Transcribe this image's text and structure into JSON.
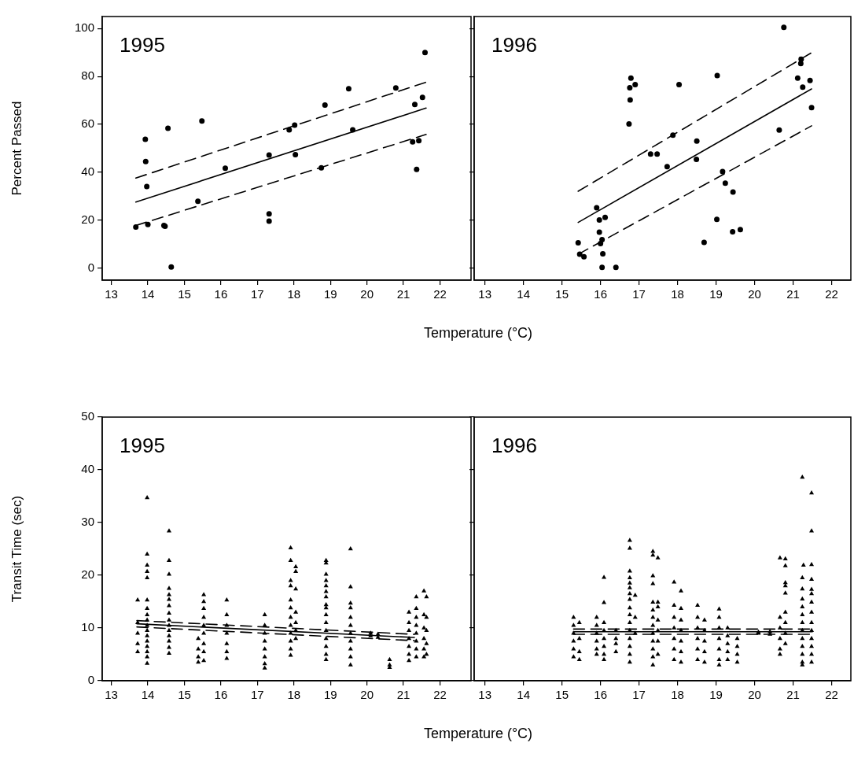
{
  "chart_data": [
    {
      "type": "scatter",
      "title": "1995",
      "xlabel": "Temperature (°C)",
      "ylabel": "Percent Passed",
      "xlim": [
        12.75,
        22.85
      ],
      "xticks": [
        13,
        14,
        15,
        16,
        17,
        18,
        19,
        20,
        21,
        22
      ],
      "ylim": [
        -5,
        105
      ],
      "yticks": [
        0,
        20,
        40,
        60,
        80,
        100
      ],
      "series": [
        {
          "type": "scatter",
          "marker": "circle",
          "color": "#000000",
          "x": [
            13.67,
            13.93,
            13.94,
            13.97,
            14.0,
            14.44,
            14.47,
            14.55,
            14.64,
            15.48,
            15.37,
            16.12,
            17.32,
            17.32,
            17.32,
            17.87,
            18.02,
            18.04,
            18.75,
            18.85,
            19.5,
            19.61,
            20.79,
            21.31,
            21.25,
            21.42,
            21.36,
            21.52,
            21.59
          ],
          "values": [
            17.2,
            53.8,
            44.5,
            34.1,
            18.2,
            17.8,
            17.5,
            58.4,
            0.5,
            61.4,
            27.9,
            41.7,
            22.7,
            19.6,
            47.2,
            57.7,
            59.7,
            47.4,
            41.9,
            68.1,
            74.9,
            57.7,
            75.2,
            68.3,
            52.7,
            53.2,
            41.2,
            71.3,
            90.0
          ]
        },
        {
          "type": "line",
          "marker": "none",
          "line_style": "solid",
          "color": "#000000",
          "x": [
            13.67,
            21.62
          ],
          "values": [
            27.6,
            66.8
          ]
        },
        {
          "type": "line",
          "marker": "none",
          "line_style": "dashed",
          "color": "#000000",
          "x": [
            13.67,
            21.62
          ],
          "values": [
            37.6,
            77.6
          ]
        },
        {
          "type": "line",
          "marker": "none",
          "line_style": "dashed",
          "color": "#000000",
          "x": [
            13.67,
            21.62
          ],
          "values": [
            17.8,
            55.8
          ]
        }
      ]
    },
    {
      "type": "scatter",
      "title": "1996",
      "tick_labels": "x",
      "xlim": [
        12.72,
        22.5
      ],
      "xticks": [
        13,
        14,
        15,
        16,
        17,
        18,
        19,
        20,
        21,
        22
      ],
      "ylim": [
        -5,
        105
      ],
      "yticks": [
        0,
        20,
        40,
        60,
        80,
        100
      ],
      "series": [
        {
          "type": "scatter",
          "marker": "circle",
          "color": "#000000",
          "x": [
            20.76,
            19.03,
            16.79,
            16.76,
            16.9,
            16.77,
            16.74,
            18.04,
            17.88,
            18.5,
            17.3,
            17.47,
            17.73,
            18.49,
            19.17,
            19.24,
            19.44,
            19.02,
            19.43,
            19.63,
            18.69,
            20.64,
            21.21,
            21.2,
            21.12,
            21.25,
            21.44,
            21.48,
            15.9,
            15.97,
            16.12,
            15.97,
            16.04,
            16.0,
            16.06,
            16.04,
            16.4,
            15.42,
            15.46,
            15.57
          ],
          "values": [
            100.5,
            80.4,
            79.3,
            75.3,
            76.6,
            70.2,
            60.2,
            76.6,
            55.5,
            53.0,
            47.6,
            47.6,
            42.4,
            45.4,
            40.3,
            35.5,
            31.8,
            20.4,
            15.2,
            16.1,
            10.8,
            57.6,
            87.2,
            85.4,
            79.3,
            75.5,
            78.3,
            67.0,
            25.2,
            20.1,
            21.2,
            15.0,
            11.9,
            10.3,
            6.0,
            0.3,
            0.3,
            10.6,
            5.8,
            4.8
          ]
        },
        {
          "type": "line",
          "marker": "none",
          "line_style": "solid",
          "color": "#000000",
          "x": [
            15.42,
            21.48
          ],
          "values": [
            19.1,
            74.8
          ]
        },
        {
          "type": "line",
          "marker": "none",
          "line_style": "dashed",
          "color": "#000000",
          "x": [
            15.42,
            21.48
          ],
          "values": [
            32.1,
            89.9
          ]
        },
        {
          "type": "line",
          "marker": "none",
          "line_style": "dashed",
          "color": "#000000",
          "x": [
            15.42,
            21.48
          ],
          "values": [
            5.8,
            59.4
          ]
        }
      ]
    },
    {
      "type": "scatter",
      "title": "1995",
      "xlabel": "Temperature (°C)",
      "ylabel": "Transit Time (sec)",
      "xlim": [
        12.75,
        22.85
      ],
      "xticks": [
        13,
        14,
        15,
        16,
        17,
        18,
        19,
        20,
        21,
        22
      ],
      "ylim": [
        0,
        50
      ],
      "yticks": [
        0,
        10,
        20,
        30,
        40,
        50
      ],
      "series": [
        {
          "type": "scatter",
          "marker": "triangle",
          "color": "#000000",
          "x": [
            13.72,
            13.72,
            13.72,
            13.72,
            13.72,
            13.98,
            13.98,
            13.98,
            13.98,
            13.98,
            13.98,
            13.98,
            13.98,
            13.98,
            13.98,
            13.98,
            13.98,
            13.98,
            13.98,
            13.98,
            13.98,
            13.98,
            14.58,
            14.58,
            14.58,
            14.58,
            14.58,
            14.58,
            14.58,
            14.58,
            14.58,
            14.58,
            14.58,
            14.58,
            14.58,
            14.58,
            14.58,
            15.38,
            15.38,
            15.38,
            15.38,
            15.53,
            15.53,
            15.53,
            15.53,
            15.53,
            15.53,
            15.53,
            15.53,
            15.53,
            16.16,
            16.16,
            16.16,
            16.16,
            16.16,
            16.16,
            16.16,
            17.2,
            17.2,
            17.2,
            17.2,
            17.2,
            17.2,
            17.2,
            17.2,
            17.91,
            17.91,
            17.91,
            17.91,
            17.91,
            17.91,
            17.91,
            17.91,
            17.91,
            17.91,
            17.91,
            17.91,
            18.05,
            18.05,
            18.05,
            18.05,
            18.05,
            18.05,
            18.05,
            18.88,
            18.88,
            18.88,
            18.88,
            18.88,
            18.88,
            18.88,
            18.88,
            18.88,
            18.88,
            18.88,
            18.88,
            18.88,
            18.88,
            18.88,
            18.88,
            19.55,
            19.55,
            19.55,
            19.55,
            19.55,
            19.55,
            19.55,
            19.55,
            19.55,
            19.55,
            19.55,
            20.1,
            20.1,
            20.3,
            20.3,
            20.62,
            20.62,
            20.62,
            21.15,
            21.15,
            21.15,
            21.15,
            21.15,
            21.15,
            21.15,
            21.35,
            21.35,
            21.35,
            21.35,
            21.35,
            21.35,
            21.35,
            21.35,
            21.56,
            21.56,
            21.56,
            21.56,
            21.56,
            21.56,
            21.63,
            21.63,
            21.63,
            21.63,
            21.63
          ],
          "values": [
            15.3,
            11,
            9,
            7,
            5.5,
            34.7,
            24.0,
            21.9,
            20.7,
            19.5,
            15.3,
            13.7,
            12.5,
            11.5,
            10.5,
            9.5,
            8.5,
            7.5,
            6.5,
            5.5,
            4.5,
            3.3,
            28.4,
            22.8,
            20.2,
            17.5,
            16.3,
            15.4,
            14.2,
            12.8,
            11.5,
            10.5,
            9.5,
            8.5,
            7.5,
            6.3,
            5.2,
            8,
            6,
            4.5,
            3.5,
            16.3,
            15.0,
            13.7,
            12,
            10.5,
            9,
            7,
            5.5,
            3.8,
            15.3,
            12.5,
            10.5,
            9,
            7,
            5.5,
            4.2,
            12.5,
            10.5,
            9,
            7.5,
            6,
            4.5,
            3.2,
            2.4,
            25.2,
            22.8,
            19.0,
            18.0,
            15.3,
            13.8,
            12,
            10.5,
            9,
            7.5,
            6,
            4.8,
            21.6,
            20.7,
            17.4,
            13,
            11,
            9.5,
            8,
            22.8,
            22.3,
            20.2,
            19.0,
            18.0,
            16.9,
            15.9,
            14.4,
            13.8,
            12.5,
            11,
            9.5,
            8,
            6.5,
            5,
            4,
            25.0,
            17.8,
            14.7,
            13.8,
            12,
            10.5,
            9,
            7.5,
            6,
            4.5,
            3,
            9,
            8.5,
            8.8,
            8.2,
            4,
            3,
            2.5,
            13,
            11,
            9.5,
            8,
            6.5,
            5,
            3.8,
            15.9,
            13.7,
            12,
            10.5,
            9,
            7.5,
            6,
            4.5,
            17.0,
            12.5,
            10,
            8,
            6,
            4.5,
            15.9,
            12,
            9.5,
            7,
            5
          ]
        },
        {
          "type": "line",
          "marker": "none",
          "line_style": "solid",
          "color": "#000000",
          "x": [
            13.7,
            21.3
          ],
          "values": [
            10.8,
            8.2
          ]
        },
        {
          "type": "line",
          "marker": "none",
          "line_style": "dashed",
          "color": "#000000",
          "x": [
            13.7,
            21.3
          ],
          "values": [
            11.4,
            8.8
          ]
        },
        {
          "type": "line",
          "marker": "none",
          "line_style": "dashed",
          "color": "#000000",
          "x": [
            13.7,
            21.3
          ],
          "values": [
            10.2,
            7.6
          ]
        }
      ]
    },
    {
      "type": "scatter",
      "title": "1996",
      "tick_labels": "x",
      "xlim": [
        12.72,
        22.5
      ],
      "xticks": [
        13,
        14,
        15,
        16,
        17,
        18,
        19,
        20,
        21,
        22
      ],
      "ylim": [
        0,
        50
      ],
      "yticks": [
        0,
        10,
        20,
        30,
        40,
        50
      ],
      "series": [
        {
          "type": "scatter",
          "marker": "triangle",
          "color": "#000000",
          "x": [
            15.3,
            15.3,
            15.3,
            15.3,
            15.3,
            15.3,
            15.45,
            15.45,
            15.45,
            15.45,
            15.9,
            15.9,
            15.9,
            15.9,
            15.9,
            15.9,
            16.09,
            16.09,
            16.09,
            16.09,
            16.09,
            16.09,
            16.09,
            16.09,
            16.4,
            16.4,
            16.4,
            16.4,
            16.76,
            16.76,
            16.76,
            16.76,
            16.76,
            16.76,
            16.76,
            16.76,
            16.76,
            16.76,
            16.76,
            16.76,
            16.76,
            16.76,
            16.76,
            16.76,
            16.9,
            16.9,
            16.9,
            17.36,
            17.36,
            17.36,
            17.36,
            17.36,
            17.36,
            17.36,
            17.36,
            17.36,
            17.36,
            17.36,
            17.36,
            17.36,
            17.49,
            17.49,
            17.49,
            17.49,
            17.49,
            17.49,
            17.49,
            17.91,
            17.91,
            17.91,
            17.91,
            17.91,
            17.91,
            17.91,
            18.09,
            18.09,
            18.09,
            18.09,
            18.09,
            18.09,
            18.09,
            18.52,
            18.52,
            18.52,
            18.52,
            18.52,
            18.52,
            18.7,
            18.7,
            18.7,
            18.7,
            18.7,
            19.08,
            19.08,
            19.08,
            19.08,
            19.08,
            19.08,
            19.08,
            19.3,
            19.3,
            19.3,
            19.3,
            19.3,
            19.55,
            19.55,
            19.55,
            19.55,
            20.1,
            20.1,
            20.4,
            20.4,
            20.66,
            20.66,
            20.66,
            20.66,
            20.66,
            20.66,
            20.8,
            20.8,
            20.8,
            20.8,
            20.8,
            20.8,
            20.8,
            20.8,
            20.8,
            21.24,
            21.24,
            21.24,
            21.24,
            21.24,
            21.24,
            21.24,
            21.24,
            21.24,
            21.24,
            21.24,
            21.24,
            21.24,
            21.27,
            21.48,
            21.48,
            21.48,
            21.48,
            21.48,
            21.48,
            21.48,
            21.48,
            21.48,
            21.48,
            21.48,
            21.48,
            21.48,
            21.48
          ],
          "values": [
            12,
            10.5,
            9,
            7.5,
            6,
            4.5,
            11,
            8,
            5.5,
            4,
            12,
            10.5,
            9,
            7.5,
            6,
            5,
            19.6,
            14.8,
            11,
            9.5,
            8,
            6.5,
            5,
            4,
            9.5,
            8,
            7,
            5.5,
            26.6,
            25.1,
            20.8,
            19.5,
            18.5,
            17.6,
            16.5,
            15.4,
            13.8,
            12.5,
            11,
            9.5,
            8,
            6.5,
            5,
            3.5,
            16.2,
            12,
            9,
            24.5,
            23.8,
            19.9,
            18.4,
            14.9,
            13.4,
            12,
            10.5,
            9,
            7.5,
            6,
            4.5,
            3,
            23.3,
            14.9,
            14.0,
            11.5,
            9.5,
            7.5,
            5,
            18.7,
            14.3,
            12,
            10,
            8,
            6,
            4,
            17.0,
            13.7,
            11.5,
            9.5,
            7.5,
            5.5,
            3.5,
            14.3,
            12,
            10,
            8,
            6,
            4,
            11.5,
            9.5,
            7.5,
            5.5,
            3.5,
            13.6,
            12,
            10,
            8,
            6,
            4,
            3,
            10,
            8.5,
            7,
            5.5,
            4,
            8,
            6.5,
            5,
            3.5,
            9.2,
            9,
            9.3,
            8.8,
            23.3,
            12,
            10,
            8,
            6,
            5,
            23.1,
            21.8,
            18.6,
            18.0,
            16.6,
            13,
            11,
            9,
            7,
            38.6,
            19.5,
            17.4,
            15.5,
            14.0,
            12.5,
            11,
            9.5,
            8,
            6.5,
            5,
            3.5,
            3,
            21.9,
            35.6,
            28.4,
            22.0,
            19.2,
            17.3,
            16.5,
            14.9,
            13,
            11,
            9.5,
            8,
            6.5,
            5,
            3.5
          ]
        },
        {
          "type": "line",
          "marker": "none",
          "line_style": "solid",
          "color": "#000000",
          "x": [
            15.3,
            21.5
          ],
          "values": [
            9.3,
            9.3
          ]
        },
        {
          "type": "line",
          "marker": "none",
          "line_style": "dashed",
          "color": "#000000",
          "x": [
            15.3,
            21.5
          ],
          "values": [
            9.8,
            9.8
          ]
        },
        {
          "type": "line",
          "marker": "none",
          "line_style": "dashed",
          "color": "#000000",
          "x": [
            15.3,
            21.5
          ],
          "values": [
            8.8,
            8.8
          ]
        }
      ]
    }
  ]
}
